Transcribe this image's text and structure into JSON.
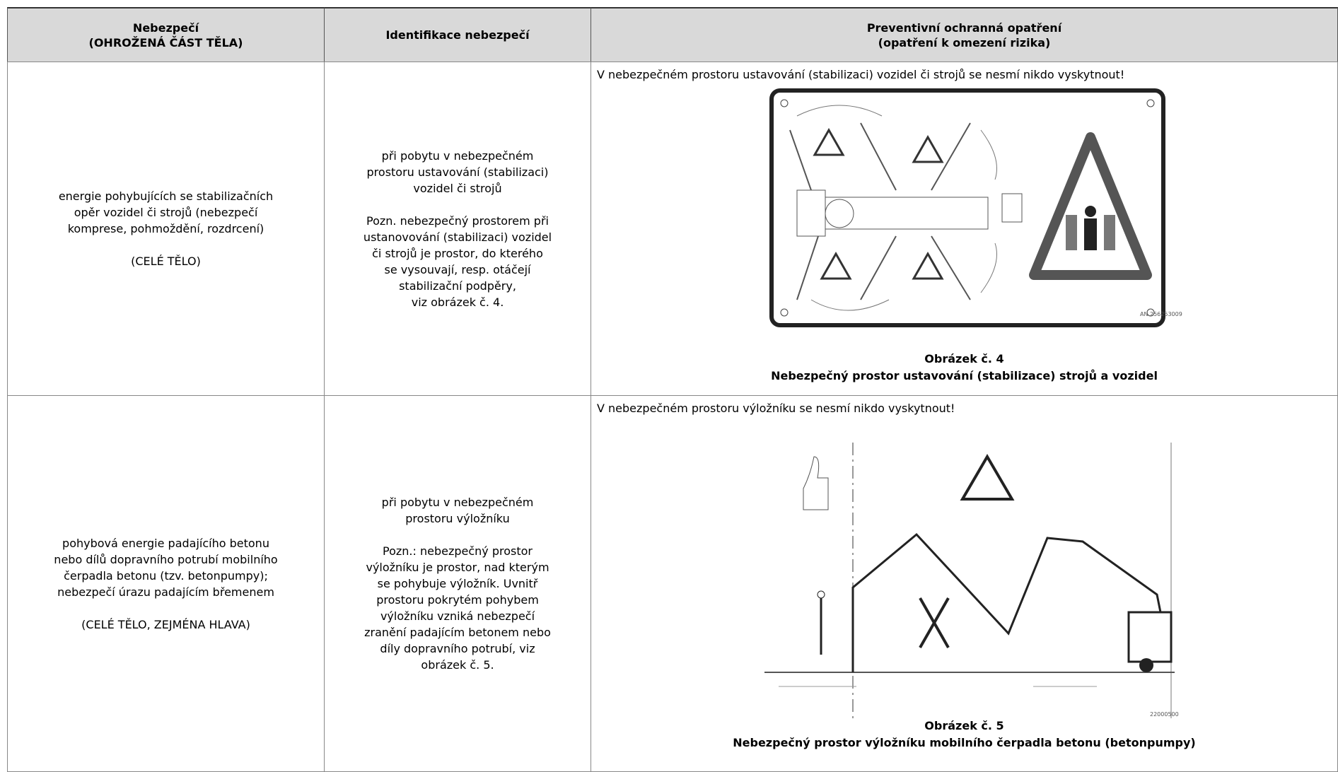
{
  "table": {
    "header": [
      [
        "Nebezpečí",
        "(OHROŽENÁ ČÁST TĚLA)"
      ],
      [
        "Identifikace nebezpečí"
      ],
      [
        "Preventivní ochranná opatření",
        "(opatření k omezení rizika)"
      ]
    ],
    "rows": [
      {
        "hazard": [
          "energie pohybujících se stabilizačních",
          "opěr vozidel či strojů (nebezpečí",
          "komprese, pohmoždění, rozdrcení)"
        ],
        "body_part": "(CELÉ TĚLO)",
        "identification": [
          "při pobytu v nebezpečném",
          "prostoru ustavování (stabilizaci)",
          "vozidel či strojů"
        ],
        "note": [
          "Pozn. nebezpečný prostorem při",
          "ustanovování (stabilizaci) vozidel",
          "či strojů je prostor, do kterého",
          "se vysouvají, resp. otáčejí",
          "stabilizační podpěry,",
          "viz obrázek č. 4."
        ],
        "measure": "V nebezpečném prostoru ustavování (stabilizaci) vozidel či strojů se nesmí nikdo vyskytnout!",
        "figure": {
          "code": "AN 256253009",
          "number": "Obrázek č. 4",
          "caption": "Nebezpečný prostor ustavování (stabilizace) strojů a vozidel"
        }
      },
      {
        "hazard": [
          "pohybová energie padajícího betonu",
          "nebo dílů dopravního potrubí mobilního",
          "čerpadla betonu (tzv. betonpumpy);",
          "nebezpečí úrazu padajícím břemenem"
        ],
        "body_part": "(CELÉ TĚLO, ZEJMÉNA HLAVA)",
        "identification": [
          "při pobytu v nebezpečném",
          "prostoru výložníku"
        ],
        "note": [
          "Pozn.: nebezpečný prostor",
          "výložníku je prostor, nad kterým",
          "se pohybuje výložník. Uvnitř",
          "prostoru pokrytém pohybem",
          "výložníku vzniká nebezpečí",
          "zranění padajícím betonem nebo",
          "díly dopravního potrubí, viz",
          "obrázek č. 5."
        ],
        "measure": "V nebezpečném prostoru výložníku se nesmí nikdo vyskytnout!",
        "figure": {
          "code": "22000500",
          "number": "Obrázek č. 5",
          "caption": "Nebezpečný prostor výložníku mobilního čerpadla betonu (betonpumpy)"
        }
      }
    ]
  }
}
